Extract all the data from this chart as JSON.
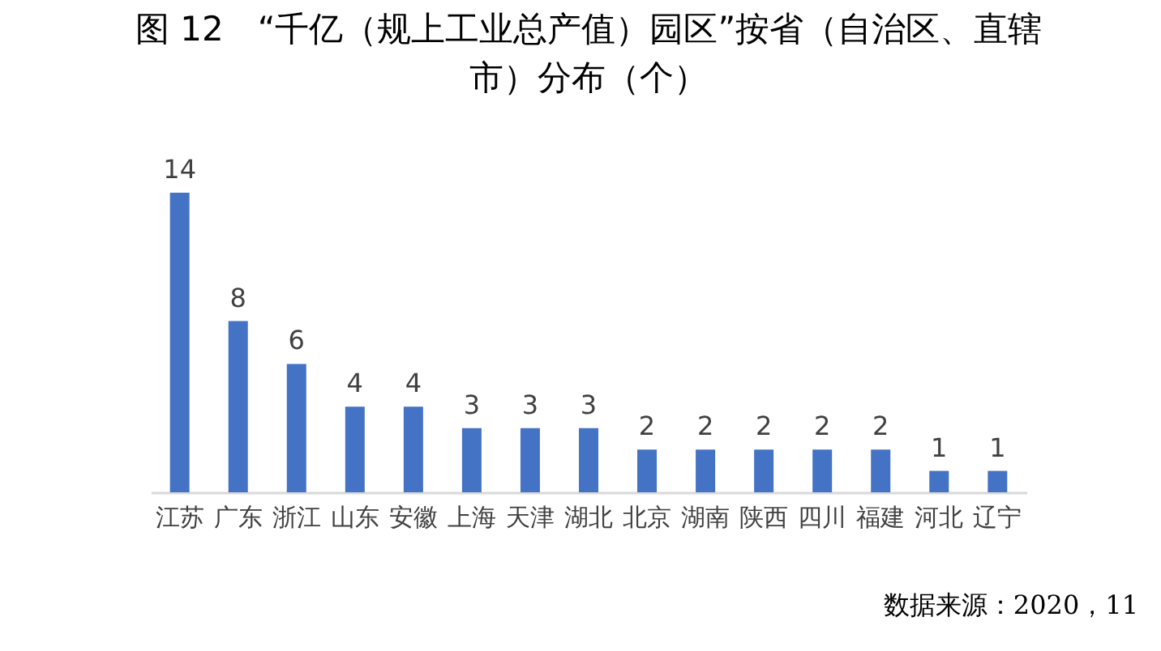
{
  "chart_data": {
    "type": "bar",
    "title": "图 12　“千亿（规上工业总产值）园区”按省（自治区、直辖市）分布（个）",
    "categories": [
      "江苏",
      "广东",
      "浙江",
      "山东",
      "安徽",
      "上海",
      "天津",
      "湖北",
      "北京",
      "湖南",
      "陕西",
      "四川",
      "福建",
      "河北",
      "辽宁"
    ],
    "values": [
      14,
      8,
      6,
      4,
      4,
      3,
      3,
      3,
      2,
      2,
      2,
      2,
      2,
      1,
      1
    ],
    "color": "#4472c4",
    "data_labels": true,
    "annotations": [
      "数据来源：2020，11"
    ]
  }
}
